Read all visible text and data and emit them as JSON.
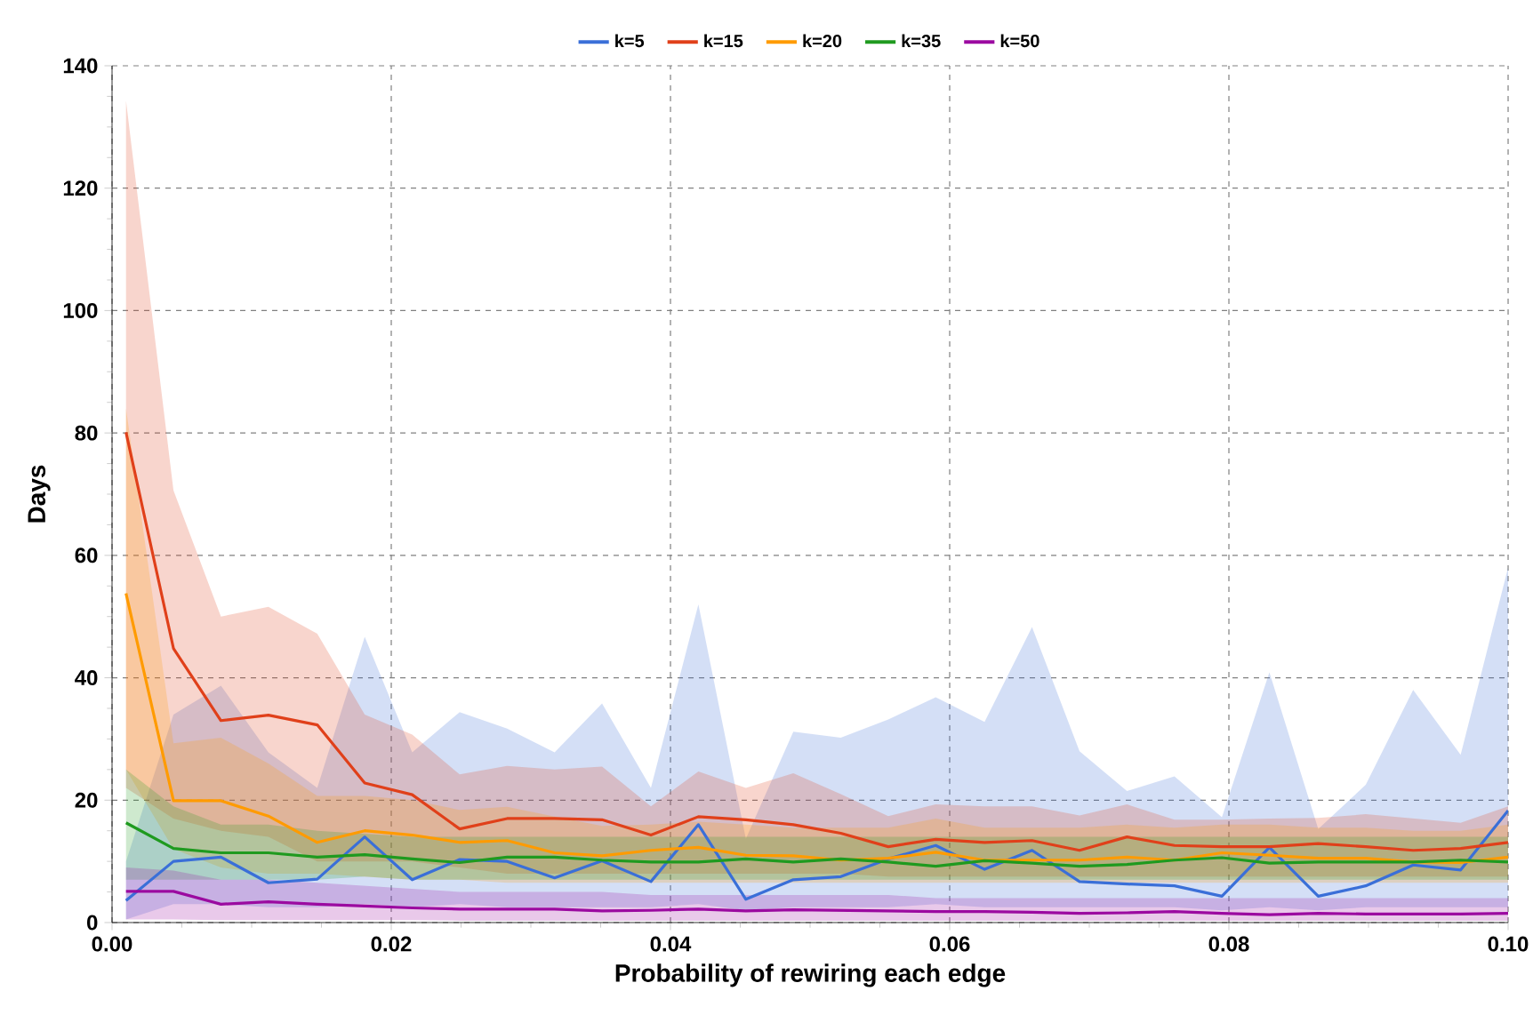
{
  "chart_data": {
    "type": "line",
    "xlabel": "Probability of rewiring each edge",
    "ylabel": "Days",
    "x": [
      0.001,
      0.0044,
      0.0078,
      0.0112,
      0.0147,
      0.0181,
      0.0215,
      0.0249,
      0.0283,
      0.0317,
      0.0351,
      0.0386,
      0.042,
      0.0454,
      0.0488,
      0.0522,
      0.0556,
      0.059,
      0.0625,
      0.0659,
      0.0693,
      0.0727,
      0.0761,
      0.0795,
      0.0829,
      0.0864,
      0.0898,
      0.0932,
      0.0966,
      0.1
    ],
    "xlim": [
      0,
      0.1
    ],
    "xticks": [
      {
        "value": 0,
        "label": "0.00"
      },
      {
        "value": 0.02,
        "label": "0.02"
      },
      {
        "value": 0.04,
        "label": "0.04"
      },
      {
        "value": 0.06,
        "label": "0.06"
      },
      {
        "value": 0.08,
        "label": "0.08"
      },
      {
        "value": 0.1,
        "label": "0.10"
      }
    ],
    "ylim": [
      0,
      140
    ],
    "yticks": [
      0,
      20,
      40,
      60,
      80,
      100,
      120,
      140
    ],
    "grid": true,
    "legend": "top",
    "line_style": "solid",
    "marker": "none",
    "series": [
      {
        "name": "k=5",
        "color": "#3a6fd8",
        "values": [
          3.6,
          10,
          10.7,
          6.5,
          7.1,
          14,
          7,
          10.3,
          10,
          7.3,
          10.1,
          6.7,
          16,
          3.8,
          7,
          7.5,
          10.4,
          12.6,
          8.7,
          11.8,
          6.7,
          6.3,
          6,
          4.3,
          12.3,
          4.3,
          6,
          9.4,
          8.6,
          18.3
        ],
        "lower": [
          0.5,
          3,
          3,
          2.5,
          2.5,
          3,
          2.5,
          3,
          2.5,
          2.5,
          2.5,
          2.5,
          3,
          2,
          2.5,
          2.5,
          2.5,
          3,
          2.5,
          2.5,
          2.5,
          2.5,
          2.5,
          2,
          2.5,
          2,
          2.5,
          2.5,
          2.5,
          2.5
        ],
        "upper": [
          10,
          34,
          38.7,
          27.8,
          22,
          46.7,
          27.8,
          34.4,
          31.7,
          27.8,
          35.8,
          22,
          52,
          13.7,
          31.2,
          30.2,
          33.2,
          36.8,
          32.8,
          48.3,
          28,
          21.5,
          23.9,
          17.2,
          40.9,
          15.3,
          22.5,
          38,
          27.4,
          58
        ]
      },
      {
        "name": "k=15",
        "color": "#e0401a",
        "values": [
          80.1,
          44.8,
          33,
          33.9,
          32.3,
          22.8,
          20.9,
          15.3,
          17,
          17,
          16.8,
          14.3,
          17.3,
          16.8,
          16,
          14.6,
          12.4,
          13.6,
          13.1,
          13.4,
          11.8,
          14,
          12.6,
          12.4,
          12.4,
          12.9,
          12.4,
          11.8,
          12.1,
          13.1
        ],
        "lower": [
          22,
          17,
          15,
          14,
          10,
          10,
          10,
          9,
          8,
          8,
          8,
          8,
          8,
          8,
          8,
          8,
          7.5,
          7.5,
          7.5,
          7.5,
          7.5,
          7.5,
          7.5,
          7.5,
          7.5,
          7.5,
          7.5,
          7.5,
          7.5,
          7.5
        ],
        "upper": [
          134.3,
          70.6,
          50,
          51.6,
          47.2,
          34,
          30.7,
          24.2,
          25.6,
          25,
          25.5,
          19,
          24.7,
          22,
          24.4,
          21,
          17.4,
          19.3,
          19,
          19,
          17.5,
          19.3,
          16.8,
          16.8,
          17,
          17.1,
          17.7,
          17,
          16.3,
          19
        ]
      },
      {
        "name": "k=20",
        "color": "#ff9b00",
        "values": [
          53.8,
          19.9,
          19.9,
          17.4,
          13.1,
          15,
          14.3,
          13.1,
          13.4,
          11.4,
          10.9,
          11.8,
          12.3,
          11,
          10.9,
          10.2,
          10.5,
          11.5,
          10.2,
          10.2,
          10.2,
          10.7,
          10.2,
          11.4,
          11,
          10.5,
          10.5,
          9.9,
          9.8,
          10.7
        ],
        "lower": [
          25,
          12,
          9,
          8,
          8,
          7.5,
          7,
          7,
          6.5,
          6.5,
          6.5,
          6.5,
          6.5,
          6.5,
          6.5,
          6.5,
          6.5,
          6.5,
          6.5,
          6.5,
          6.5,
          6.5,
          6.5,
          6.5,
          6.5,
          6.5,
          6.5,
          6.5,
          6.5,
          6.5
        ],
        "upper": [
          84,
          29.3,
          30.2,
          26,
          20.7,
          20.7,
          20,
          18.4,
          18.9,
          17.3,
          15.8,
          16,
          16.5,
          16,
          15.5,
          15.5,
          15.5,
          17,
          15.5,
          15.5,
          15.5,
          16,
          15.5,
          16,
          16,
          15.5,
          15.5,
          15,
          15,
          16
        ]
      },
      {
        "name": "k=35",
        "color": "#1f9a1f",
        "values": [
          16.3,
          12.1,
          11.4,
          11.4,
          10.7,
          11.1,
          10.4,
          9.8,
          10.7,
          10.7,
          10.2,
          9.9,
          9.9,
          10.4,
          9.9,
          10.4,
          9.9,
          9.2,
          10.1,
          9.7,
          9.2,
          9.5,
          10.2,
          10.6,
          9.7,
          9.9,
          9.9,
          9.9,
          10.2,
          9.9
        ],
        "lower": [
          7,
          7,
          7,
          7,
          7,
          7.5,
          7,
          7,
          7,
          7,
          7,
          7,
          7,
          7,
          7,
          7,
          7,
          7,
          7,
          7,
          7,
          7,
          7,
          7,
          7,
          7,
          7,
          7,
          7,
          7
        ],
        "upper": [
          25,
          19,
          16,
          16,
          15,
          14.5,
          14,
          14,
          14,
          14,
          14,
          14,
          14,
          14,
          14,
          14,
          14,
          14,
          14,
          14,
          14,
          14,
          14,
          14,
          14,
          14,
          14,
          14,
          14,
          14
        ]
      },
      {
        "name": "k=50",
        "color": "#9b0aa0",
        "values": [
          5.1,
          5.1,
          3,
          3.4,
          3,
          2.7,
          2.4,
          2.2,
          2.2,
          2.2,
          1.9,
          2,
          2.2,
          1.9,
          2.1,
          2,
          1.9,
          1.8,
          1.8,
          1.7,
          1.5,
          1.6,
          1.8,
          1.5,
          1.3,
          1.5,
          1.4,
          1.4,
          1.4,
          1.5
        ],
        "lower": [
          0.5,
          0.5,
          0.4,
          0.4,
          0.4,
          0.4,
          0.4,
          0.3,
          0.3,
          0.3,
          0.3,
          0.3,
          0.3,
          0.3,
          0.3,
          0.3,
          0.3,
          0.3,
          0.3,
          0.3,
          0.3,
          0.3,
          0.3,
          0.3,
          0.3,
          0.3,
          0.3,
          0.3,
          0.3,
          0.3
        ],
        "upper": [
          9,
          8.5,
          7,
          7,
          6.5,
          6,
          5.5,
          5,
          5,
          5,
          5,
          4.5,
          4.5,
          4.5,
          4.5,
          4.5,
          4.5,
          4,
          4,
          4,
          4,
          4,
          4,
          4,
          4,
          4,
          4,
          4,
          4,
          4
        ]
      }
    ]
  }
}
